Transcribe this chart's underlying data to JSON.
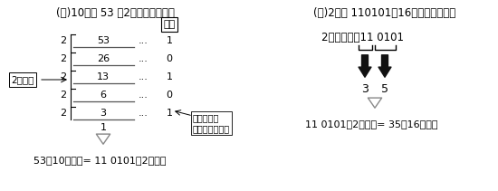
{
  "title_left": "(例)10進数 53 を2進数に変換する",
  "title_right": "(例)2進数 110101ぉ16進数に変換する",
  "remainder_label": "余り",
  "divide_label": "2で割る",
  "division_rows": [
    {
      "divisor": "2",
      "dividend": "53",
      "remainder": "1"
    },
    {
      "divisor": "2",
      "dividend": "26",
      "remainder": "0"
    },
    {
      "divisor": "2",
      "dividend": "13",
      "remainder": "1"
    },
    {
      "divisor": "2",
      "dividend": "6",
      "remainder": "0"
    },
    {
      "divisor": "2",
      "dividend": "3",
      "remainder": "1"
    }
  ],
  "final_quotient": "1",
  "collect_note": "下から拾い\n集めると・・・",
  "result_left": "53（10進数）= 11 0101（2進数）",
  "binary_label": "2進数・・・11 0101",
  "hex_left": "3",
  "hex_right": "5",
  "result_right": "11 0101（2進数）= 35（16進数）",
  "bg_color": "#ffffff",
  "text_color": "#000000",
  "line_color": "#555555",
  "heavy_arrow_color": "#111111",
  "arrow_fill_color": "#ffffff",
  "arrow_edge_color": "#888888"
}
